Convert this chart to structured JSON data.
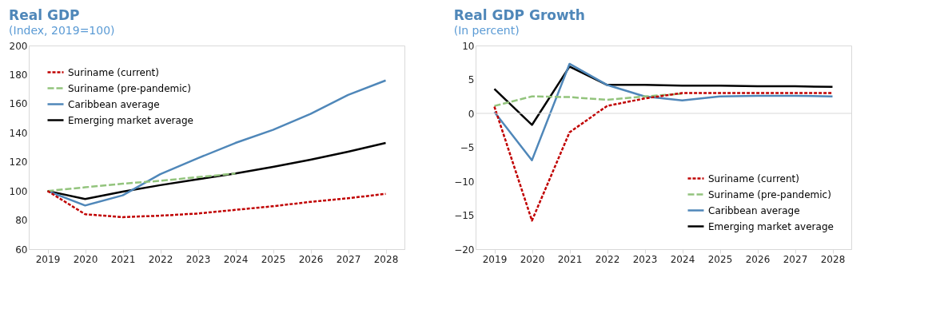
{
  "chart_data": [
    {
      "type": "line",
      "title": "Real GDP",
      "subtitle": "(Index, 2019=100)",
      "categories": [
        "2019",
        "2020",
        "2021",
        "2022",
        "2023",
        "2024",
        "2025",
        "2026",
        "2027",
        "2028"
      ],
      "series": [
        {
          "name": "Suriname (current)",
          "color": "#c00000",
          "line_style": "dashed",
          "values": [
            100,
            84,
            82,
            83,
            84.5,
            87,
            89.5,
            92.5,
            95,
            98
          ]
        },
        {
          "name": "Suriname (pre-pandemic)",
          "color": "#93c47d",
          "line_style": "longdash",
          "values": [
            100,
            102.5,
            105,
            107,
            109.5,
            112,
            null,
            null,
            null,
            null
          ]
        },
        {
          "name": "Caribbean average",
          "color": "#4f87b9",
          "line_style": "solid",
          "values": [
            100,
            90,
            97,
            111.5,
            122.5,
            133,
            142,
            153,
            166,
            176
          ]
        },
        {
          "name": "Emerging market average",
          "color": "#000000",
          "line_style": "solid",
          "values": [
            100,
            94.5,
            99.5,
            104,
            108,
            112,
            116.5,
            121.5,
            127,
            133
          ]
        }
      ],
      "ylim": [
        60,
        200
      ],
      "yticks": [
        60,
        80,
        100,
        120,
        140,
        160,
        180,
        200
      ],
      "grid": false,
      "legend": "top left"
    },
    {
      "type": "line",
      "title": "Real GDP Growth",
      "subtitle": "(In percent)",
      "categories": [
        "2019",
        "2020",
        "2021",
        "2022",
        "2023",
        "2024",
        "2025",
        "2026",
        "2027",
        "2028"
      ],
      "series": [
        {
          "name": "Suriname (current)",
          "color": "#c00000",
          "line_style": "dashed",
          "values": [
            1,
            -15.8,
            -2.8,
            1.1,
            2.2,
            3,
            3,
            3,
            3,
            3
          ]
        },
        {
          "name": "Suriname (pre-pandemic)",
          "color": "#93c47d",
          "line_style": "longdash",
          "values": [
            1.1,
            2.5,
            2.4,
            2.0,
            2.5,
            2.9,
            null,
            null,
            null,
            null
          ]
        },
        {
          "name": "Caribbean average",
          "color": "#4f87b9",
          "line_style": "solid",
          "values": [
            0.2,
            -6.9,
            7.3,
            4.2,
            2.5,
            1.9,
            2.5,
            2.6,
            2.6,
            2.5
          ]
        },
        {
          "name": "Emerging market average",
          "color": "#000000",
          "line_style": "solid",
          "values": [
            3.6,
            -1.7,
            6.9,
            4.2,
            4.2,
            4.1,
            4.1,
            4.0,
            4.0,
            3.9
          ]
        }
      ],
      "ylim": [
        -20,
        10
      ],
      "yticks": [
        -20,
        -15,
        -10,
        -5,
        0,
        5,
        10
      ],
      "grid": false,
      "legend": "bottom right",
      "ref_lines": [
        {
          "axis": "y",
          "value": 0,
          "color": "#d9d9d9"
        }
      ]
    }
  ]
}
